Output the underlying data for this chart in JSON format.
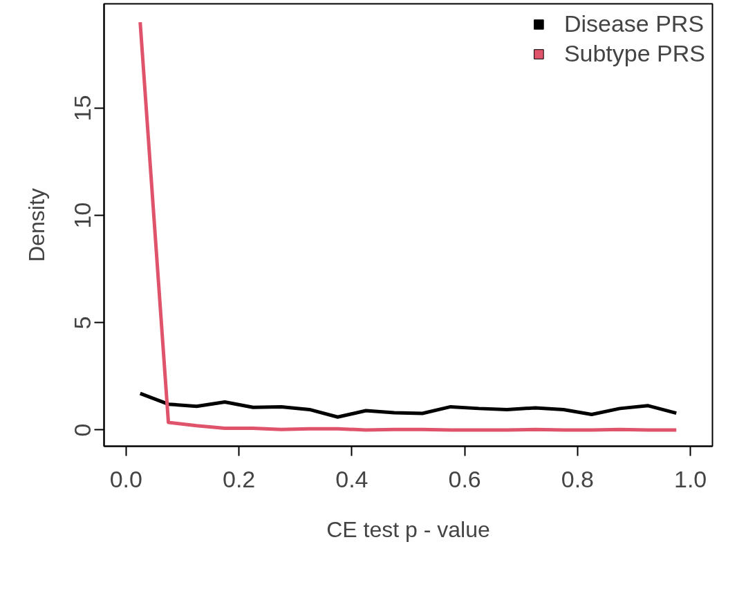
{
  "chart_data": {
    "type": "line",
    "xlabel": "CE test p - value",
    "ylabel": "Density",
    "x": [
      0.025,
      0.075,
      0.125,
      0.175,
      0.225,
      0.275,
      0.325,
      0.375,
      0.425,
      0.475,
      0.525,
      0.575,
      0.625,
      0.675,
      0.725,
      0.775,
      0.825,
      0.875,
      0.925,
      0.975
    ],
    "series": [
      {
        "name": "Disease PRS",
        "color": "#000000",
        "values": [
          1.7,
          1.2,
          1.1,
          1.3,
          1.05,
          1.08,
          0.95,
          0.6,
          0.9,
          0.8,
          0.77,
          1.08,
          1.0,
          0.95,
          1.03,
          0.95,
          0.72,
          1.0,
          1.13,
          0.78
        ]
      },
      {
        "name": "Subtype PRS",
        "color": "#df536b",
        "values": [
          19.0,
          0.35,
          0.2,
          0.08,
          0.08,
          0.02,
          0.05,
          0.05,
          0.0,
          0.02,
          0.02,
          0.0,
          0.0,
          0.0,
          0.02,
          0.0,
          0.0,
          0.02,
          0.0,
          0.0
        ]
      }
    ],
    "xlim": [
      -0.039,
      1.039
    ],
    "ylim": [
      -0.76,
      19.86
    ],
    "xticks": [
      {
        "value": 0.0,
        "label": "0.0"
      },
      {
        "value": 0.2,
        "label": "0.2"
      },
      {
        "value": 0.4,
        "label": "0.4"
      },
      {
        "value": 0.6,
        "label": "0.6"
      },
      {
        "value": 0.8,
        "label": "0.8"
      },
      {
        "value": 1.0,
        "label": "1.0"
      }
    ],
    "yticks": [
      0,
      5,
      10,
      15
    ],
    "legend": "top right",
    "grid": false,
    "marker": "none",
    "line_style": "solid"
  }
}
